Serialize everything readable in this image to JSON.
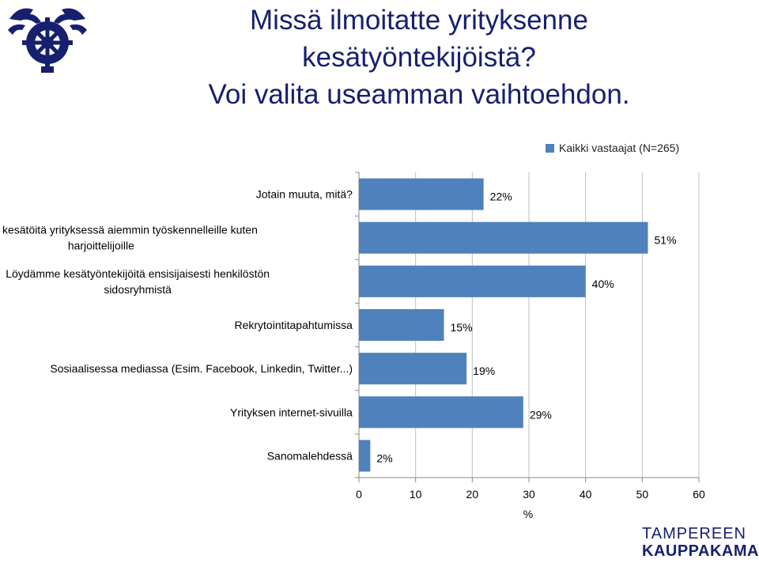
{
  "title_lines": [
    "Missä ilmoitatte yrityksenne",
    "kesätyöntekijöistä?",
    "Voi valita useamman vaihtoehdon."
  ],
  "brand": {
    "line1": "TAMPEREEN",
    "line2": "KAUPPAKAMARI"
  },
  "colors": {
    "title": "#16206e",
    "bar": "#4f81bd",
    "grid": "#bfbfbf"
  },
  "chart_data": {
    "type": "bar",
    "orientation": "horizontal",
    "categories": [
      "Jotain muuta, mitä?",
      "Tarjoamme kesätöitä yrityksessä aiemmin työskennelleille kuten harjoittelijoille",
      "Löydämme kesätyöntekijöitä ensisijaisesti henkilöstön sidosryhmistä",
      "Rekrytointitapahtumissa",
      "Sosiaalisessa mediassa (Esim. Facebook, Linkedin, Twitter...)",
      "Yrityksen internet-sivuilla",
      "Sanomalehdessä"
    ],
    "category_label_lines": [
      [
        "Jotain muuta, mitä?"
      ],
      [
        "Tarjoamme kesätöitä yrityksessä aiemmin työskennelleille kuten",
        "harjoittelijoille"
      ],
      [
        "Löydämme kesätyöntekijöitä ensisijaisesti henkilöstön",
        "sidosryhmistä"
      ],
      [
        "Rekrytointitapahtumissa"
      ],
      [
        "Sosiaalisessa mediassa (Esim. Facebook, Linkedin, Twitter...)"
      ],
      [
        "Yrityksen internet-sivuilla"
      ],
      [
        "Sanomalehdessä"
      ]
    ],
    "series": [
      {
        "name": "Kaikki vastaajat (N=265)",
        "values": [
          22,
          51,
          40,
          15,
          19,
          29,
          2
        ]
      }
    ],
    "data_labels": [
      "22%",
      "51%",
      "40%",
      "15%",
      "19%",
      "29%",
      "2%"
    ],
    "xlabel": "%",
    "xlim": [
      0,
      60
    ],
    "xticks": [
      "0",
      "10",
      "20",
      "30",
      "40",
      "50",
      "60"
    ],
    "grid": true,
    "legend_position": "top-right"
  }
}
